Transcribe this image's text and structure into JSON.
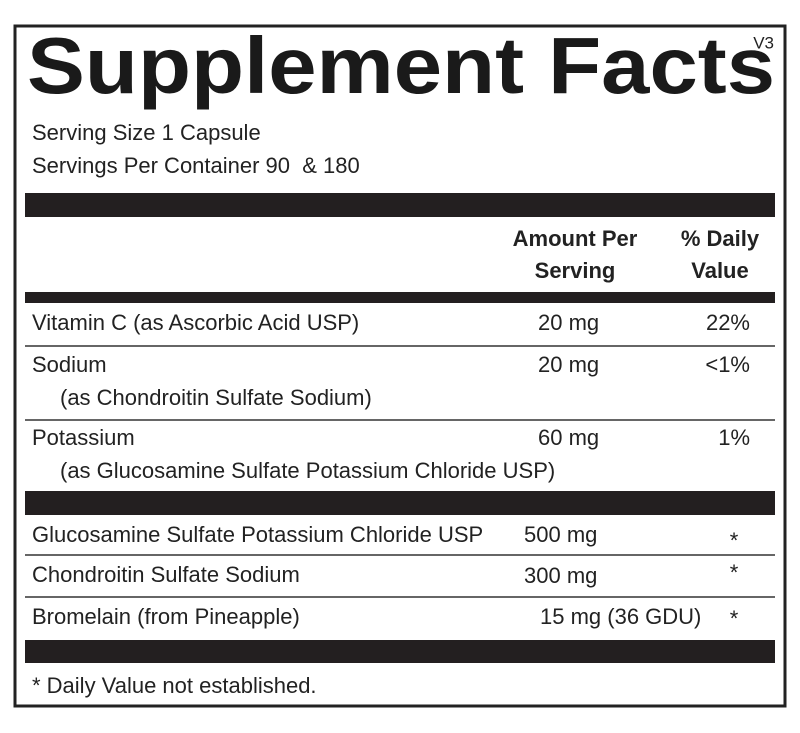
{
  "header": {
    "title": "Supplement Facts",
    "version": "V3"
  },
  "serving": {
    "size": "Serving Size 1 Capsule",
    "per_container": "Servings Per Container 90  & 180"
  },
  "columns": {
    "amount": [
      "Amount Per",
      "Serving"
    ],
    "daily_value": [
      "% Daily",
      "Value"
    ]
  },
  "table": {
    "rows": [
      {
        "name": "Vitamin C (as Ascorbic Acid USP)",
        "amount": "20 mg",
        "dv": "22%"
      },
      {
        "name": "Sodium",
        "source": "(as Chondroitin Sulfate Sodium)",
        "amount": "20 mg",
        "dv": "<1%"
      },
      {
        "name": "Potassium",
        "source": "(as Glucosamine Sulfate Potassium Chloride USP)",
        "amount": "60 mg",
        "dv": "1%"
      },
      {
        "name": "Glucosamine Sulfate Potassium Chloride USP",
        "amount": "500 mg",
        "dv": "*"
      },
      {
        "name": "Chondroitin Sulfate Sodium",
        "amount": "300 mg",
        "dv": "*"
      },
      {
        "name": "Bromelain (from Pineapple)",
        "amount": "15 mg (36 GDU)",
        "dv": "*"
      }
    ]
  },
  "footnote": "* Daily Value not established."
}
